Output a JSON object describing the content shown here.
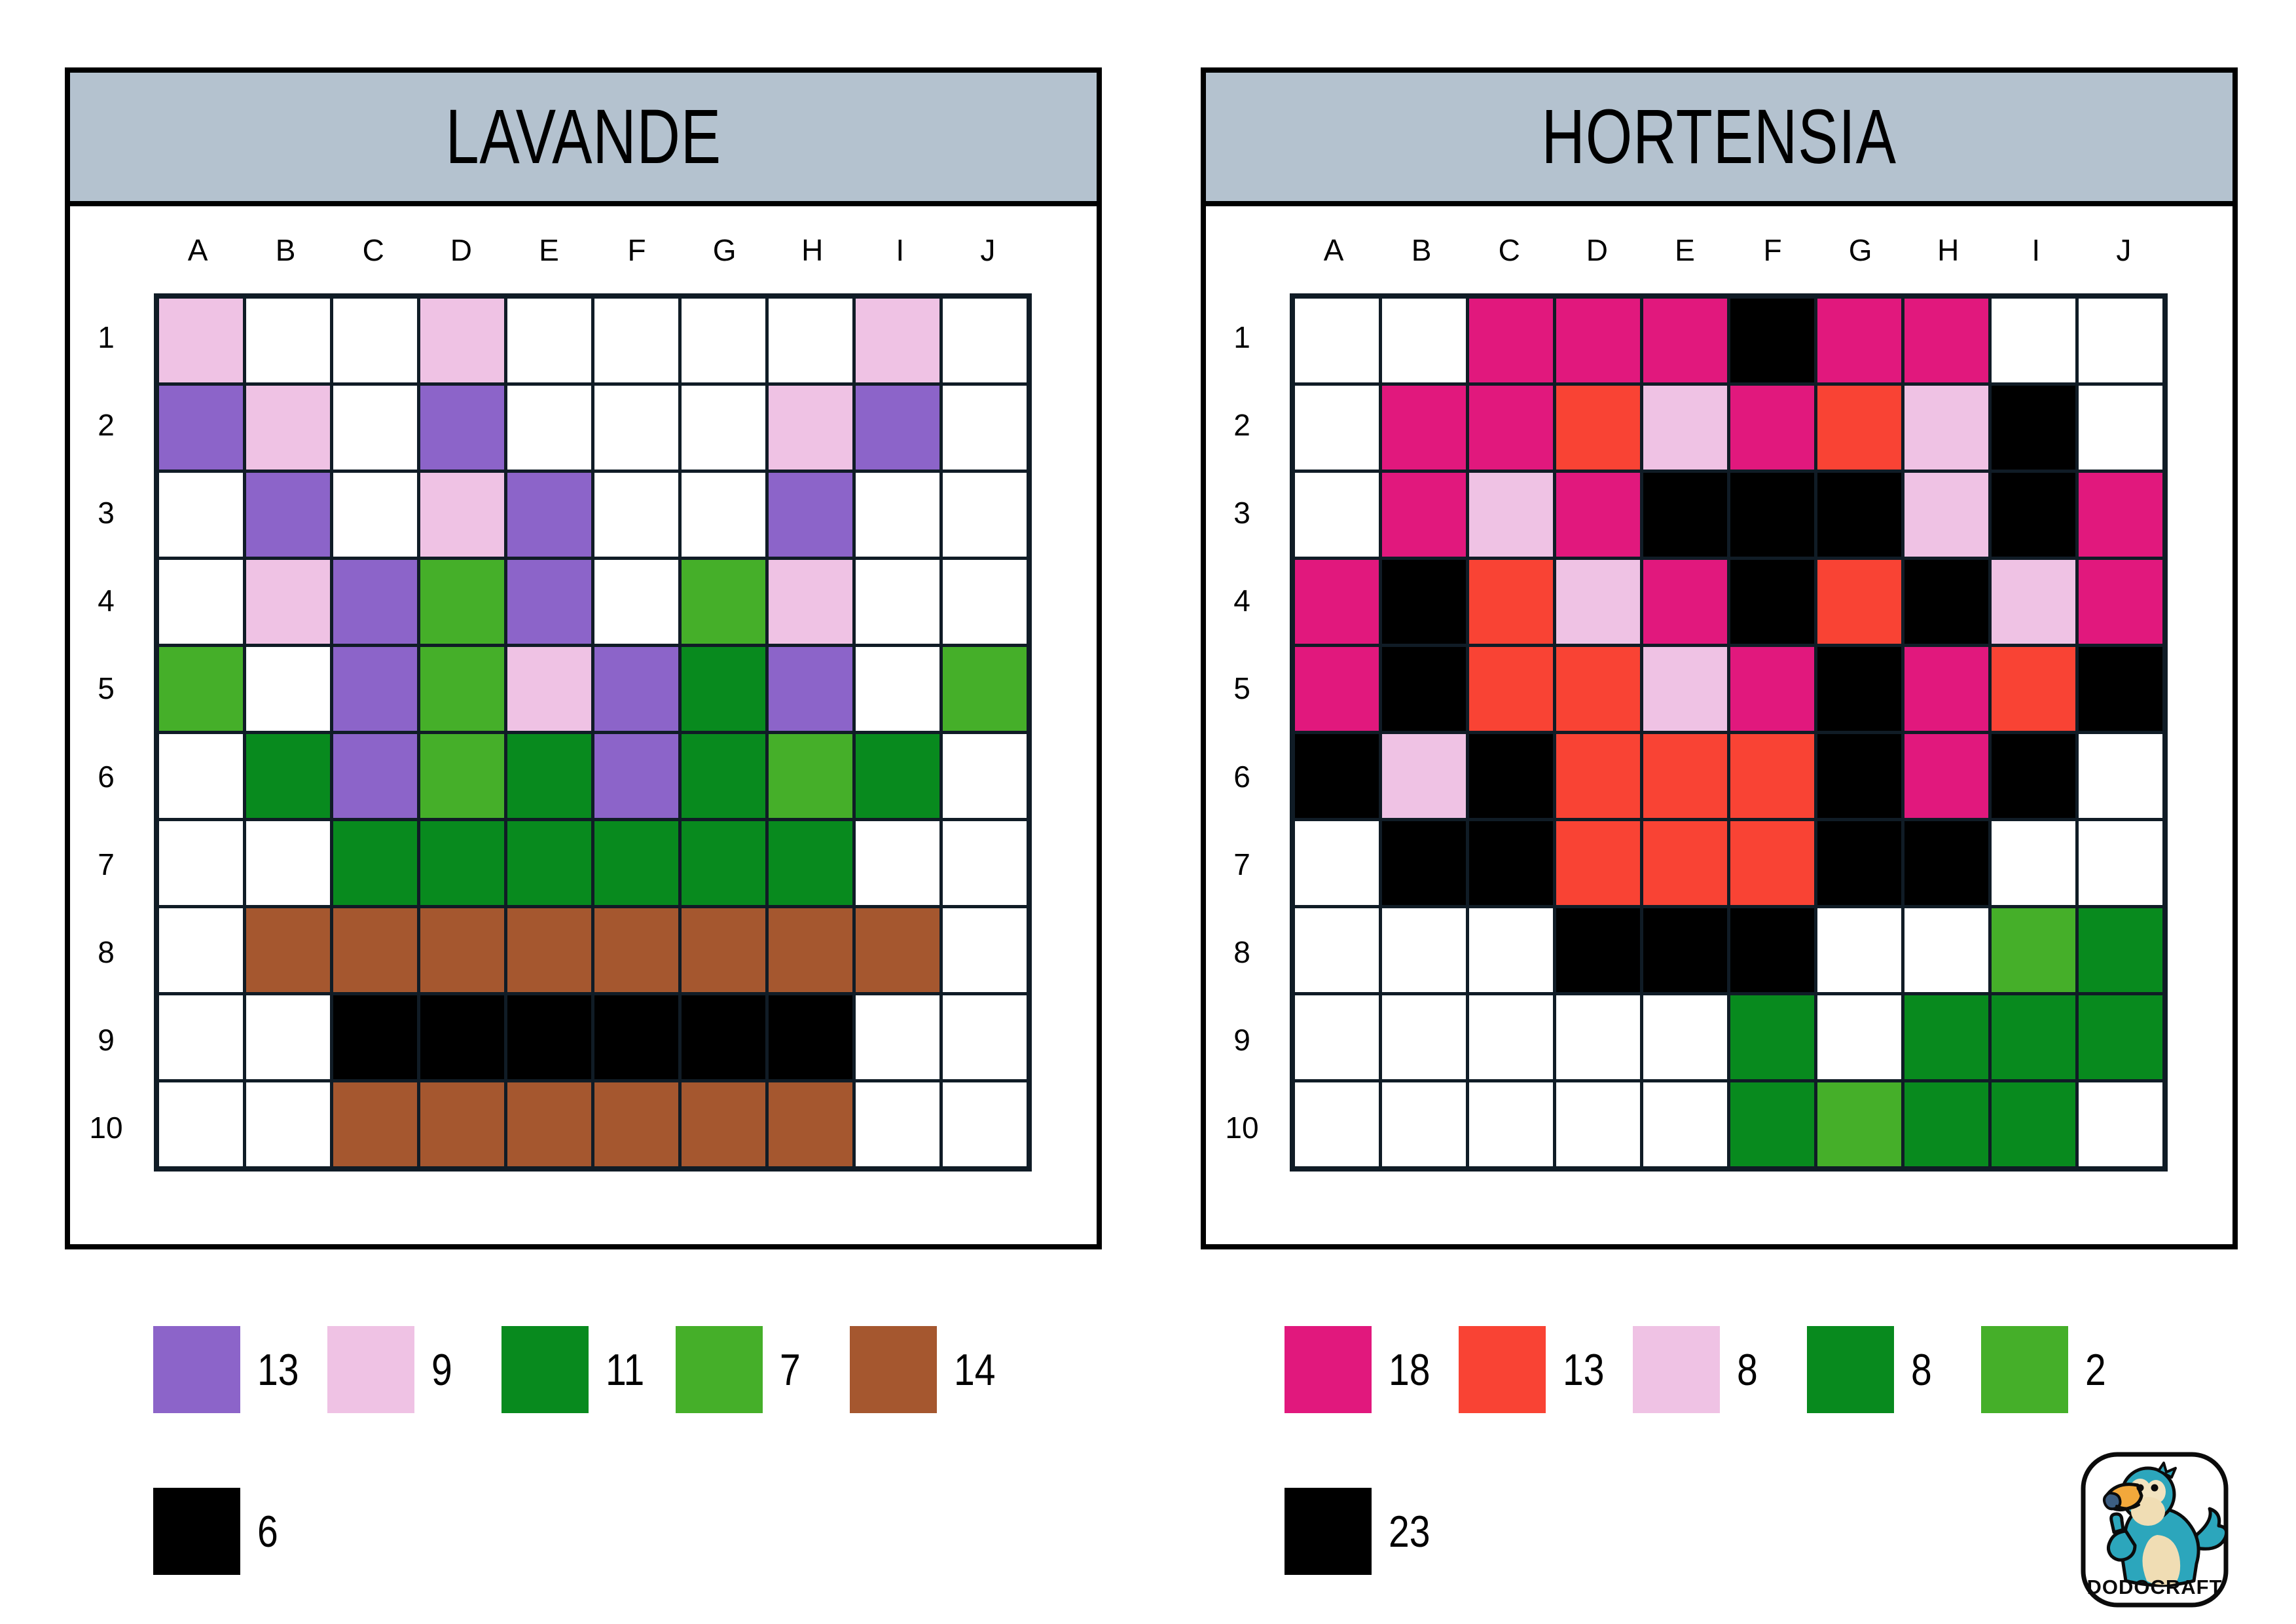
{
  "ui": {
    "header_bg": "#B4C2CF",
    "grid_line": "#101C26",
    "page_bg": "#FFFFFF"
  },
  "colors": {
    "W": "#FFFFFF",
    "P": "#8C64C9",
    "K": "#EFC2E4",
    "G": "#088A1E",
    "L": "#45AF29",
    "B": "#A5572F",
    "X": "#000000",
    "M": "#E1187D",
    "R": "#F94334"
  },
  "color_names": {
    "W": "white",
    "P": "purple",
    "K": "light-pink",
    "G": "dark-green",
    "L": "light-green",
    "B": "brown",
    "X": "black",
    "M": "magenta",
    "R": "red"
  },
  "columns": [
    "A",
    "B",
    "C",
    "D",
    "E",
    "F",
    "G",
    "H",
    "I",
    "J"
  ],
  "rows": [
    "1",
    "2",
    "3",
    "4",
    "5",
    "6",
    "7",
    "8",
    "9",
    "10"
  ],
  "panels": [
    {
      "title": "LAVANDE",
      "grid": [
        "K..K....K.",
        "PK.P...KP.",
        ".P.KP..P..",
        ".KPLP.LK..",
        "L.PLKPGP.L",
        ".GPLGPGLG.",
        "..GGGGGG..",
        ".BBBBBBBB.",
        "..XXXXXX..",
        "..BBBBBB.."
      ],
      "legend_row1": [
        {
          "color": "P",
          "count": "13"
        },
        {
          "color": "K",
          "count": "9"
        },
        {
          "color": "G",
          "count": "11"
        },
        {
          "color": "L",
          "count": "7"
        },
        {
          "color": "B",
          "count": "14"
        }
      ],
      "legend_row2": [
        {
          "color": "X",
          "count": "6"
        }
      ]
    },
    {
      "title": "HORTENSIA",
      "grid": [
        "..MMMXMM..",
        ".MMRKMRKX.",
        ".MKMXXXKXM",
        "MXRKMXRXKM",
        "MXRRKMXMRX",
        "XKXRRRXMX.",
        ".XXRRRXX..",
        "...XXX..LG",
        ".....G.GGG",
        ".....GLGG."
      ],
      "legend_row1": [
        {
          "color": "M",
          "count": "18"
        },
        {
          "color": "R",
          "count": "13"
        },
        {
          "color": "K",
          "count": "8"
        },
        {
          "color": "G",
          "count": "8"
        },
        {
          "color": "L",
          "count": "2"
        }
      ],
      "legend_row2": [
        {
          "color": "X",
          "count": "23"
        }
      ]
    }
  ],
  "logo": {
    "text": "DODOCRAFT"
  }
}
